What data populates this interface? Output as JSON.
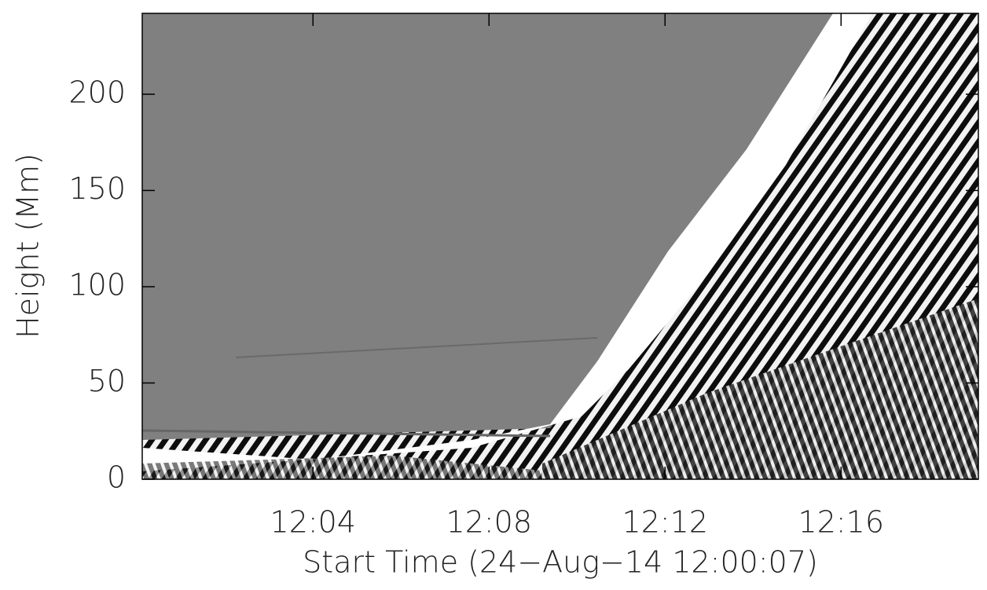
{
  "chart_data": {
    "type": "image",
    "x_label": "Start Time (24−Aug−14 12:00:07)",
    "y_label": "Height (Mm)",
    "xlim": [
      0.12,
      19.12
    ],
    "xticks": [
      {
        "value": 4,
        "label": "12:04"
      },
      {
        "value": 8,
        "label": "12:08"
      },
      {
        "value": 12,
        "label": "12:12"
      },
      {
        "value": 16,
        "label": "12:16"
      }
    ],
    "ylim": [
      0,
      242
    ],
    "yticks": [
      0,
      50,
      100,
      150,
      200
    ]
  }
}
